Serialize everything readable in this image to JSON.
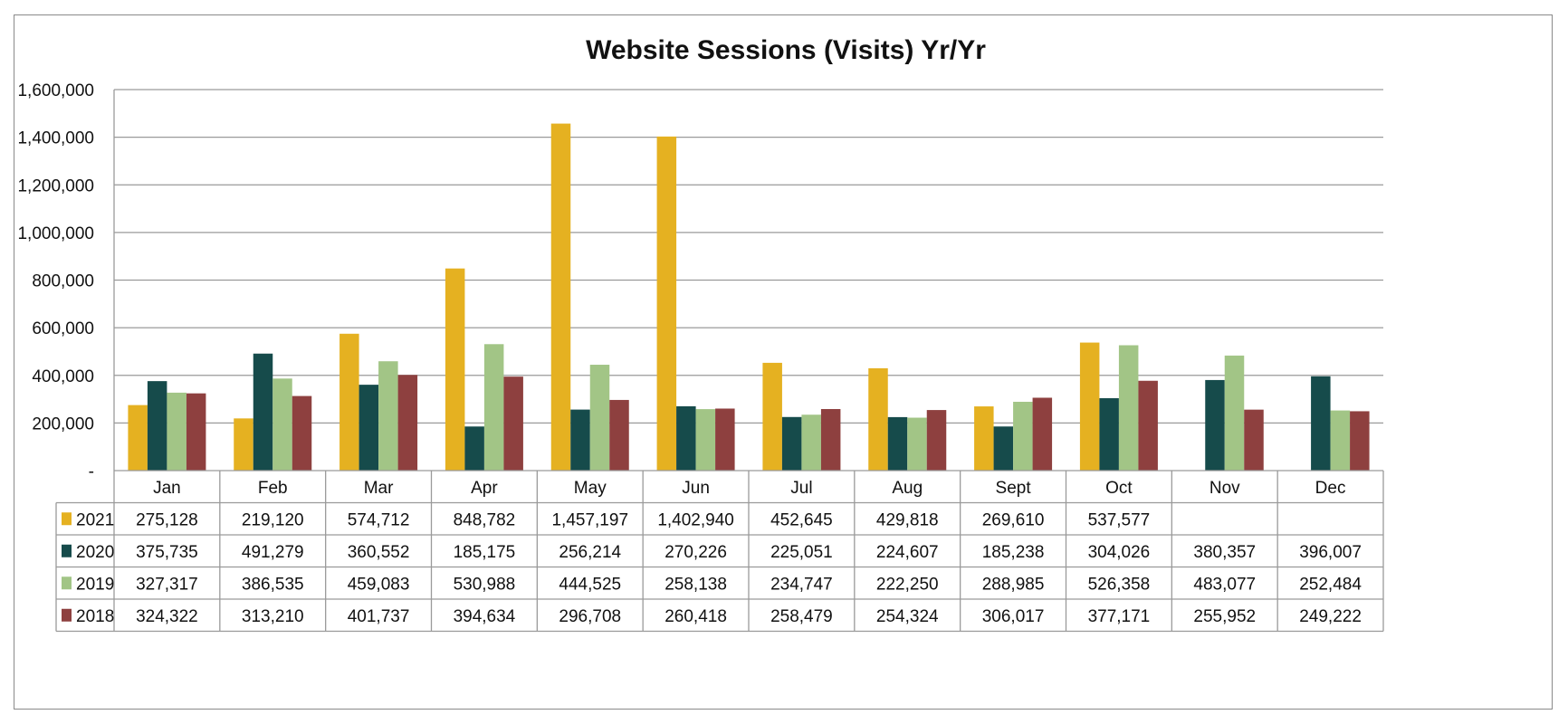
{
  "chart_data": {
    "type": "bar",
    "title": "Website Sessions (Visits) Yr/Yr",
    "categories": [
      "Jan",
      "Feb",
      "Mar",
      "Apr",
      "May",
      "Jun",
      "Jul",
      "Aug",
      "Sept",
      "Oct",
      "Nov",
      "Dec"
    ],
    "ylim": [
      0,
      1600000
    ],
    "yticks": [
      {
        "value": 0,
        "label": "-"
      },
      {
        "value": 200000,
        "label": "200,000"
      },
      {
        "value": 400000,
        "label": "400,000"
      },
      {
        "value": 600000,
        "label": "600,000"
      },
      {
        "value": 800000,
        "label": "800,000"
      },
      {
        "value": 1000000,
        "label": "1,000,000"
      },
      {
        "value": 1200000,
        "label": "1,200,000"
      },
      {
        "value": 1400000,
        "label": "1,400,000"
      },
      {
        "value": 1600000,
        "label": "1,600,000"
      }
    ],
    "grid": true,
    "legend": "data-table",
    "series": [
      {
        "name": "2021",
        "color": "#e5b121",
        "values": [
          275128,
          219120,
          574712,
          848782,
          1457197,
          1402940,
          452645,
          429818,
          269610,
          537577,
          null,
          null
        ],
        "labels": [
          "275,128",
          "219,120",
          "574,712",
          "848,782",
          "1,457,197",
          "1,402,940",
          "452,645",
          "429,818",
          "269,610",
          "537,577",
          "",
          ""
        ]
      },
      {
        "name": "2020",
        "color": "#164b4b",
        "values": [
          375735,
          491279,
          360552,
          185175,
          256214,
          270226,
          225051,
          224607,
          185238,
          304026,
          380357,
          396007
        ],
        "labels": [
          "375,735",
          "491,279",
          "360,552",
          "185,175",
          "256,214",
          "270,226",
          "225,051",
          "224,607",
          "185,238",
          "304,026",
          "380,357",
          "396,007"
        ]
      },
      {
        "name": "2019",
        "color": "#a2c586",
        "values": [
          327317,
          386535,
          459083,
          530988,
          444525,
          258138,
          234747,
          222250,
          288985,
          526358,
          483077,
          252484
        ],
        "labels": [
          "327,317",
          "386,535",
          "459,083",
          "530,988",
          "444,525",
          "258,138",
          "234,747",
          "222,250",
          "288,985",
          "526,358",
          "483,077",
          "252,484"
        ]
      },
      {
        "name": "2018",
        "color": "#8e403f",
        "values": [
          324322,
          313210,
          401737,
          394634,
          296708,
          260418,
          258479,
          254324,
          306017,
          377171,
          255952,
          249222
        ],
        "labels": [
          "324,322",
          "313,210",
          "401,737",
          "394,634",
          "296,708",
          "260,418",
          "258,479",
          "254,324",
          "306,017",
          "377,171",
          "255,952",
          "249,222"
        ]
      }
    ]
  }
}
